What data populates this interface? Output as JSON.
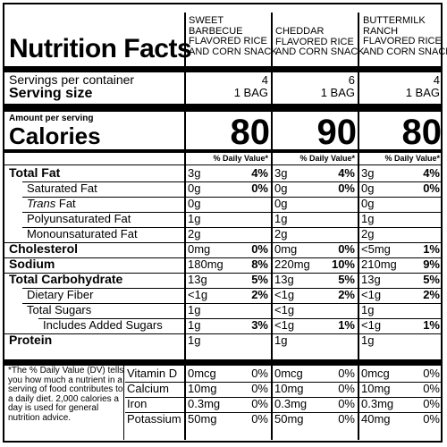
{
  "title": "Nutrition Facts",
  "servings_per_container_label": "Servings per container",
  "serving_size_label": "Serving size",
  "amount_per_serving": "Amount per serving",
  "calories_label": "Calories",
  "dv_header": "% Daily Value*",
  "products": [
    {
      "name_lines": [
        "SWEET",
        "BARBECUE",
        "FLAVORED RICE",
        "AND CORN SNACK"
      ],
      "servings": "4",
      "serving_size": "1 BAG",
      "calories": "80"
    },
    {
      "name_lines": [
        "CHEDDAR",
        "FLAVORED RICE",
        "AND CORN SNACK"
      ],
      "servings": "6",
      "serving_size": "1 BAG",
      "calories": "90"
    },
    {
      "name_lines": [
        "BUTTERMILK",
        "RANCH",
        "FLAVORED RICE",
        "AND CORN SNACK"
      ],
      "servings": "4",
      "serving_size": "1 BAG",
      "calories": "80"
    }
  ],
  "nutrients": [
    {
      "label": "Total Fat",
      "values": [
        {
          "amt": "3g",
          "pct": "4%"
        },
        {
          "amt": "3g",
          "pct": "4%"
        },
        {
          "amt": "3g",
          "pct": "4%"
        }
      ]
    },
    {
      "label": "Saturated Fat",
      "values": [
        {
          "amt": "0g",
          "pct": "0%"
        },
        {
          "amt": "0g",
          "pct": "0%"
        },
        {
          "amt": "0g",
          "pct": "0%"
        }
      ]
    },
    {
      "label_italic": "Trans",
      "label": " Fat",
      "values": [
        {
          "amt": "0g",
          "pct": ""
        },
        {
          "amt": "0g",
          "pct": ""
        },
        {
          "amt": "0g",
          "pct": ""
        }
      ]
    },
    {
      "label": "Polyunsaturated Fat",
      "values": [
        {
          "amt": "1g",
          "pct": ""
        },
        {
          "amt": "1g",
          "pct": ""
        },
        {
          "amt": "1g",
          "pct": ""
        }
      ]
    },
    {
      "label": "Monounsaturated Fat",
      "values": [
        {
          "amt": "2g",
          "pct": ""
        },
        {
          "amt": "2g",
          "pct": ""
        },
        {
          "amt": "2g",
          "pct": ""
        }
      ]
    },
    {
      "label": "Cholesterol",
      "values": [
        {
          "amt": "0mg",
          "pct": "0%"
        },
        {
          "amt": "0mg",
          "pct": "0%"
        },
        {
          "amt": "<5mg",
          "pct": "1%"
        }
      ]
    },
    {
      "label": "Sodium",
      "values": [
        {
          "amt": "180mg",
          "pct": "8%"
        },
        {
          "amt": "220mg",
          "pct": "10%"
        },
        {
          "amt": "210mg",
          "pct": "9%"
        }
      ]
    },
    {
      "label": "Total Carbohydrate",
      "values": [
        {
          "amt": "13g",
          "pct": "5%"
        },
        {
          "amt": "13g",
          "pct": "5%"
        },
        {
          "amt": "13g",
          "pct": "5%"
        }
      ]
    },
    {
      "label": "Dietary Fiber",
      "values": [
        {
          "amt": "<1g",
          "pct": "2%"
        },
        {
          "amt": "<1g",
          "pct": "2%"
        },
        {
          "amt": "<1g",
          "pct": "2%"
        }
      ]
    },
    {
      "label": "Total Sugars",
      "values": [
        {
          "amt": "1g",
          "pct": ""
        },
        {
          "amt": "<1g",
          "pct": ""
        },
        {
          "amt": "1g",
          "pct": ""
        }
      ]
    },
    {
      "label": "Includes Added Sugars",
      "values": [
        {
          "amt": "1g",
          "pct": "3%"
        },
        {
          "amt": "<1g",
          "pct": "1%"
        },
        {
          "amt": "<1g",
          "pct": "1%"
        }
      ]
    },
    {
      "label": "Protein",
      "values": [
        {
          "amt": "1g",
          "pct": ""
        },
        {
          "amt": "1g",
          "pct": ""
        },
        {
          "amt": "1g",
          "pct": ""
        }
      ]
    }
  ],
  "vitamins": [
    {
      "label": "Vitamin D",
      "values": [
        {
          "amt": "0mcg",
          "pct": "0%"
        },
        {
          "amt": "0mcg",
          "pct": "0%"
        },
        {
          "amt": "0mcg",
          "pct": "0%"
        }
      ]
    },
    {
      "label": "Calcium",
      "values": [
        {
          "amt": "10mg",
          "pct": "0%"
        },
        {
          "amt": "10mg",
          "pct": "0%"
        },
        {
          "amt": "10mg",
          "pct": "0%"
        }
      ]
    },
    {
      "label": "Iron",
      "values": [
        {
          "amt": "0.3mg",
          "pct": "0%"
        },
        {
          "amt": "0.3mg",
          "pct": "0%"
        },
        {
          "amt": "0.3mg",
          "pct": "0%"
        }
      ]
    },
    {
      "label": "Potassium",
      "values": [
        {
          "amt": "50mg",
          "pct": "0%"
        },
        {
          "amt": "50mg",
          "pct": "0%"
        },
        {
          "amt": "40mg",
          "pct": "0%"
        }
      ]
    }
  ],
  "footnote": "*The % Daily Value (DV) tells you how much a nutrient in a serving of food contributes to a daily diet. 2,000 calories a day is used for general nutrition advice."
}
